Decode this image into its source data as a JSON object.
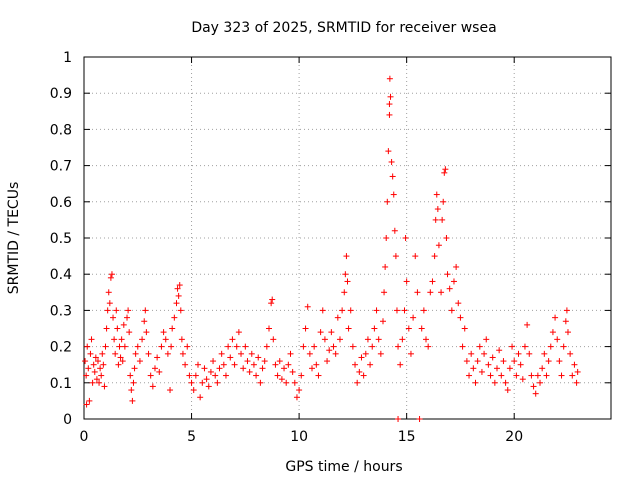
{
  "chart_data": {
    "type": "scatter",
    "title": "Day 323 of 2025, SRMTID for receiver wsea",
    "xlabel": "GPS time / hours",
    "ylabel": "SRMTID / TECUs",
    "xlim": [
      0,
      24.5
    ],
    "ylim": [
      0,
      1
    ],
    "xticks": [
      0,
      5,
      10,
      15,
      20
    ],
    "xtick_labels": [
      "0",
      "5",
      "10",
      "15",
      "20"
    ],
    "yticks": [
      0,
      0.1,
      0.2,
      0.3,
      0.4,
      0.5,
      0.6,
      0.7,
      0.8,
      0.9,
      1
    ],
    "ytick_labels": [
      "0",
      "0.1",
      "0.2",
      "0.3",
      "0.4",
      "0.5",
      "0.6",
      "0.7",
      "0.8",
      "0.9",
      "1"
    ],
    "grid": true,
    "marker": "plus",
    "color": "#ff0000",
    "series": [
      {
        "name": "SRMTID",
        "points": [
          [
            0.05,
            0.16
          ],
          [
            0.1,
            0.12
          ],
          [
            0.12,
            0.04
          ],
          [
            0.15,
            0.2
          ],
          [
            0.2,
            0.14
          ],
          [
            0.25,
            0.05
          ],
          [
            0.3,
            0.18
          ],
          [
            0.35,
            0.22
          ],
          [
            0.4,
            0.1
          ],
          [
            0.45,
            0.15
          ],
          [
            0.5,
            0.13
          ],
          [
            0.55,
            0.17
          ],
          [
            0.6,
            0.11
          ],
          [
            0.65,
            0.16
          ],
          [
            0.7,
            0.1
          ],
          [
            0.75,
            0.14
          ],
          [
            0.8,
            0.12
          ],
          [
            0.85,
            0.18
          ],
          [
            0.9,
            0.15
          ],
          [
            0.95,
            0.09
          ],
          [
            1.0,
            0.2
          ],
          [
            1.05,
            0.25
          ],
          [
            1.1,
            0.3
          ],
          [
            1.15,
            0.35
          ],
          [
            1.2,
            0.32
          ],
          [
            1.25,
            0.39
          ],
          [
            1.3,
            0.4
          ],
          [
            1.35,
            0.28
          ],
          [
            1.4,
            0.22
          ],
          [
            1.45,
            0.18
          ],
          [
            1.5,
            0.3
          ],
          [
            1.55,
            0.25
          ],
          [
            1.6,
            0.15
          ],
          [
            1.65,
            0.2
          ],
          [
            1.7,
            0.17
          ],
          [
            1.75,
            0.22
          ],
          [
            1.8,
            0.16
          ],
          [
            1.85,
            0.26
          ],
          [
            1.9,
            0.2
          ],
          [
            2.0,
            0.28
          ],
          [
            2.05,
            0.3
          ],
          [
            2.1,
            0.24
          ],
          [
            2.15,
            0.12
          ],
          [
            2.2,
            0.08
          ],
          [
            2.25,
            0.05
          ],
          [
            2.3,
            0.1
          ],
          [
            2.35,
            0.14
          ],
          [
            2.4,
            0.18
          ],
          [
            2.5,
            0.2
          ],
          [
            2.6,
            0.16
          ],
          [
            2.7,
            0.22
          ],
          [
            2.8,
            0.27
          ],
          [
            2.85,
            0.3
          ],
          [
            2.9,
            0.24
          ],
          [
            3.0,
            0.18
          ],
          [
            3.1,
            0.12
          ],
          [
            3.2,
            0.09
          ],
          [
            3.3,
            0.14
          ],
          [
            3.4,
            0.17
          ],
          [
            3.5,
            0.13
          ],
          [
            3.6,
            0.2
          ],
          [
            3.7,
            0.24
          ],
          [
            3.8,
            0.22
          ],
          [
            3.9,
            0.18
          ],
          [
            4.0,
            0.08
          ],
          [
            4.05,
            0.2
          ],
          [
            4.1,
            0.25
          ],
          [
            4.2,
            0.28
          ],
          [
            4.3,
            0.32
          ],
          [
            4.35,
            0.36
          ],
          [
            4.4,
            0.34
          ],
          [
            4.45,
            0.37
          ],
          [
            4.5,
            0.3
          ],
          [
            4.55,
            0.22
          ],
          [
            4.6,
            0.18
          ],
          [
            4.7,
            0.15
          ],
          [
            4.8,
            0.2
          ],
          [
            4.9,
            0.12
          ],
          [
            5.0,
            0.1
          ],
          [
            5.1,
            0.08
          ],
          [
            5.2,
            0.12
          ],
          [
            5.3,
            0.15
          ],
          [
            5.4,
            0.06
          ],
          [
            5.5,
            0.1
          ],
          [
            5.6,
            0.14
          ],
          [
            5.7,
            0.11
          ],
          [
            5.8,
            0.09
          ],
          [
            5.9,
            0.13
          ],
          [
            6.0,
            0.16
          ],
          [
            6.1,
            0.12
          ],
          [
            6.2,
            0.1
          ],
          [
            6.3,
            0.14
          ],
          [
            6.4,
            0.18
          ],
          [
            6.5,
            0.15
          ],
          [
            6.6,
            0.12
          ],
          [
            6.7,
            0.2
          ],
          [
            6.8,
            0.17
          ],
          [
            6.9,
            0.22
          ],
          [
            7.0,
            0.15
          ],
          [
            7.1,
            0.2
          ],
          [
            7.2,
            0.24
          ],
          [
            7.3,
            0.18
          ],
          [
            7.4,
            0.14
          ],
          [
            7.5,
            0.2
          ],
          [
            7.6,
            0.16
          ],
          [
            7.7,
            0.13
          ],
          [
            7.8,
            0.18
          ],
          [
            7.9,
            0.15
          ],
          [
            8.0,
            0.12
          ],
          [
            8.1,
            0.17
          ],
          [
            8.2,
            0.1
          ],
          [
            8.3,
            0.14
          ],
          [
            8.4,
            0.16
          ],
          [
            8.5,
            0.2
          ],
          [
            8.6,
            0.25
          ],
          [
            8.7,
            0.32
          ],
          [
            8.75,
            0.33
          ],
          [
            8.8,
            0.22
          ],
          [
            8.9,
            0.15
          ],
          [
            9.0,
            0.12
          ],
          [
            9.1,
            0.16
          ],
          [
            9.2,
            0.11
          ],
          [
            9.3,
            0.14
          ],
          [
            9.4,
            0.1
          ],
          [
            9.5,
            0.15
          ],
          [
            9.6,
            0.18
          ],
          [
            9.7,
            0.13
          ],
          [
            9.8,
            0.1
          ],
          [
            9.9,
            0.06
          ],
          [
            10.0,
            0.08
          ],
          [
            10.1,
            0.12
          ],
          [
            10.2,
            0.2
          ],
          [
            10.3,
            0.25
          ],
          [
            10.4,
            0.31
          ],
          [
            10.5,
            0.18
          ],
          [
            10.6,
            0.14
          ],
          [
            10.7,
            0.2
          ],
          [
            10.8,
            0.15
          ],
          [
            10.9,
            0.12
          ],
          [
            11.0,
            0.24
          ],
          [
            11.1,
            0.3
          ],
          [
            11.2,
            0.22
          ],
          [
            11.3,
            0.16
          ],
          [
            11.4,
            0.19
          ],
          [
            11.5,
            0.24
          ],
          [
            11.6,
            0.2
          ],
          [
            11.7,
            0.18
          ],
          [
            11.8,
            0.28
          ],
          [
            11.9,
            0.22
          ],
          [
            12.0,
            0.3
          ],
          [
            12.1,
            0.35
          ],
          [
            12.15,
            0.4
          ],
          [
            12.2,
            0.45
          ],
          [
            12.25,
            0.38
          ],
          [
            12.3,
            0.25
          ],
          [
            12.4,
            0.3
          ],
          [
            12.5,
            0.2
          ],
          [
            12.6,
            0.15
          ],
          [
            12.7,
            0.1
          ],
          [
            12.8,
            0.13
          ],
          [
            12.9,
            0.17
          ],
          [
            13.0,
            0.12
          ],
          [
            13.1,
            0.18
          ],
          [
            13.2,
            0.22
          ],
          [
            13.3,
            0.15
          ],
          [
            13.4,
            0.2
          ],
          [
            13.5,
            0.25
          ],
          [
            13.6,
            0.3
          ],
          [
            13.7,
            0.22
          ],
          [
            13.8,
            0.18
          ],
          [
            13.9,
            0.27
          ],
          [
            13.95,
            0.35
          ],
          [
            14.0,
            0.42
          ],
          [
            14.05,
            0.5
          ],
          [
            14.1,
            0.6
          ],
          [
            14.15,
            0.74
          ],
          [
            14.2,
            0.84
          ],
          [
            14.2,
            0.87
          ],
          [
            14.22,
            0.94
          ],
          [
            14.25,
            0.89
          ],
          [
            14.3,
            0.71
          ],
          [
            14.35,
            0.67
          ],
          [
            14.4,
            0.62
          ],
          [
            14.45,
            0.52
          ],
          [
            14.5,
            0.45
          ],
          [
            14.55,
            0.3
          ],
          [
            14.6,
            0.2
          ],
          [
            14.6,
            0.0
          ],
          [
            14.7,
            0.15
          ],
          [
            14.8,
            0.22
          ],
          [
            14.9,
            0.3
          ],
          [
            14.95,
            0.5
          ],
          [
            15.0,
            0.38
          ],
          [
            15.1,
            0.25
          ],
          [
            15.2,
            0.18
          ],
          [
            15.3,
            0.28
          ],
          [
            15.4,
            0.45
          ],
          [
            15.5,
            0.35
          ],
          [
            15.6,
            0.0
          ],
          [
            15.7,
            0.25
          ],
          [
            15.8,
            0.3
          ],
          [
            15.9,
            0.22
          ],
          [
            16.0,
            0.2
          ],
          [
            16.1,
            0.35
          ],
          [
            16.2,
            0.38
          ],
          [
            16.3,
            0.45
          ],
          [
            16.35,
            0.55
          ],
          [
            16.4,
            0.62
          ],
          [
            16.45,
            0.58
          ],
          [
            16.5,
            0.48
          ],
          [
            16.6,
            0.35
          ],
          [
            16.65,
            0.55
          ],
          [
            16.7,
            0.6
          ],
          [
            16.75,
            0.68
          ],
          [
            16.8,
            0.69
          ],
          [
            16.85,
            0.5
          ],
          [
            16.9,
            0.4
          ],
          [
            17.0,
            0.36
          ],
          [
            17.1,
            0.3
          ],
          [
            17.2,
            0.38
          ],
          [
            17.3,
            0.42
          ],
          [
            17.4,
            0.32
          ],
          [
            17.5,
            0.28
          ],
          [
            17.6,
            0.2
          ],
          [
            17.7,
            0.25
          ],
          [
            17.8,
            0.16
          ],
          [
            17.9,
            0.12
          ],
          [
            18.0,
            0.18
          ],
          [
            18.1,
            0.14
          ],
          [
            18.2,
            0.1
          ],
          [
            18.3,
            0.16
          ],
          [
            18.4,
            0.2
          ],
          [
            18.5,
            0.13
          ],
          [
            18.6,
            0.18
          ],
          [
            18.7,
            0.22
          ],
          [
            18.8,
            0.15
          ],
          [
            18.9,
            0.12
          ],
          [
            19.0,
            0.17
          ],
          [
            19.1,
            0.1
          ],
          [
            19.2,
            0.14
          ],
          [
            19.3,
            0.19
          ],
          [
            19.4,
            0.12
          ],
          [
            19.5,
            0.16
          ],
          [
            19.6,
            0.1
          ],
          [
            19.7,
            0.08
          ],
          [
            19.8,
            0.14
          ],
          [
            19.9,
            0.2
          ],
          [
            20.0,
            0.16
          ],
          [
            20.1,
            0.12
          ],
          [
            20.2,
            0.18
          ],
          [
            20.3,
            0.15
          ],
          [
            20.4,
            0.11
          ],
          [
            20.5,
            0.2
          ],
          [
            20.6,
            0.26
          ],
          [
            20.7,
            0.18
          ],
          [
            20.8,
            0.12
          ],
          [
            20.9,
            0.09
          ],
          [
            21.0,
            0.07
          ],
          [
            21.1,
            0.12
          ],
          [
            21.2,
            0.1
          ],
          [
            21.3,
            0.14
          ],
          [
            21.4,
            0.18
          ],
          [
            21.5,
            0.12
          ],
          [
            21.6,
            0.16
          ],
          [
            21.7,
            0.2
          ],
          [
            21.8,
            0.24
          ],
          [
            21.9,
            0.28
          ],
          [
            22.0,
            0.22
          ],
          [
            22.1,
            0.16
          ],
          [
            22.2,
            0.12
          ],
          [
            22.3,
            0.2
          ],
          [
            22.4,
            0.27
          ],
          [
            22.45,
            0.3
          ],
          [
            22.5,
            0.24
          ],
          [
            22.6,
            0.18
          ],
          [
            22.7,
            0.12
          ],
          [
            22.8,
            0.15
          ],
          [
            22.9,
            0.1
          ],
          [
            22.95,
            0.13
          ]
        ]
      }
    ]
  }
}
